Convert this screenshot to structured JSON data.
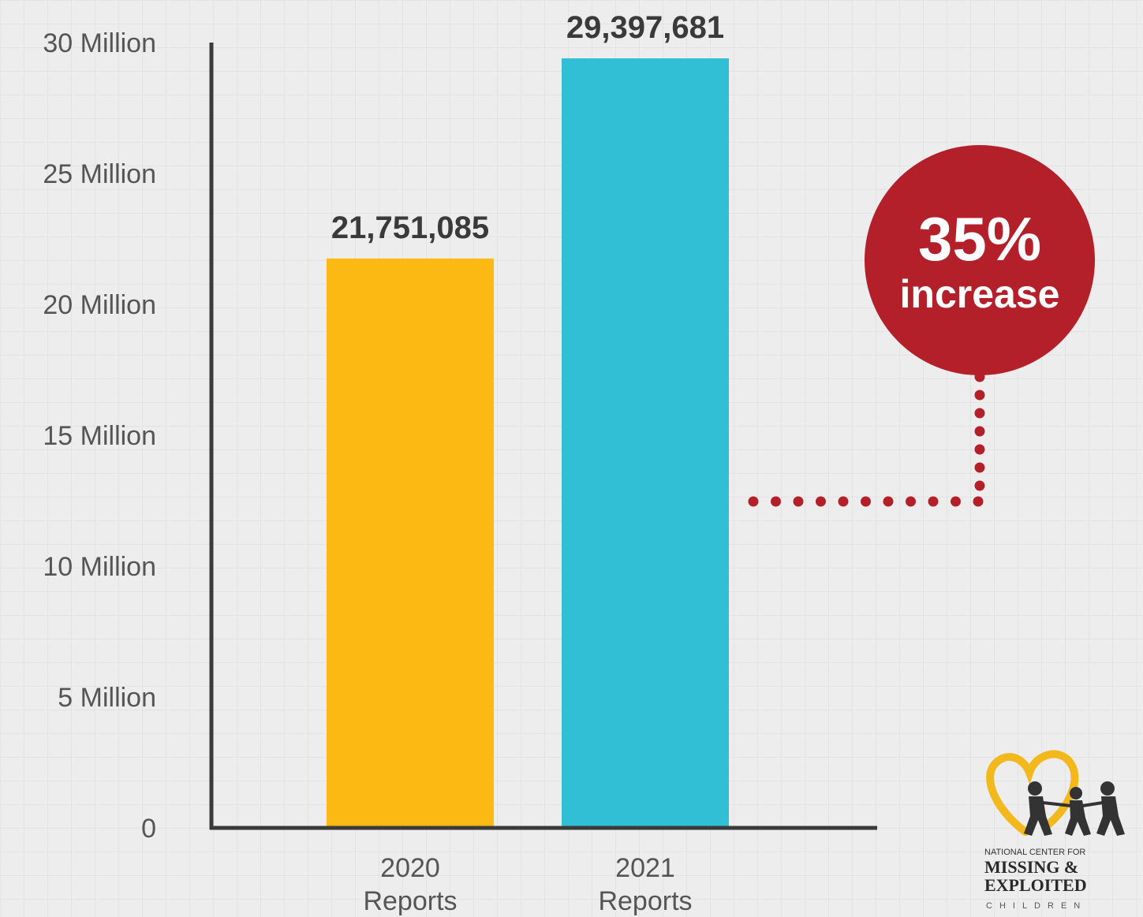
{
  "chart_data": {
    "type": "bar",
    "categories": [
      "2020|Reports",
      "2021|Reports"
    ],
    "values": [
      21751085,
      29397681
    ],
    "value_labels": [
      "21,751,085",
      "29,397,681"
    ],
    "bar_colors": [
      "#fdb913",
      "#31bfd6"
    ],
    "ylim": [
      0,
      30000000
    ],
    "yticks": [
      0,
      5000000,
      10000000,
      15000000,
      20000000,
      25000000,
      30000000
    ],
    "ytick_labels": [
      "0",
      "5 Million",
      "10 Million",
      "15 Million",
      "20 Million",
      "25 Million",
      "30 Million"
    ],
    "grid": true,
    "annotation": {
      "big": "35%",
      "small": "increase",
      "color": "#b3202a"
    }
  },
  "logo": {
    "line1": "NATIONAL CENTER FOR",
    "line2": "MISSING &",
    "line3": "EXPLOITED",
    "line4": "CHILDREN",
    "heart_color": "#f2b81c"
  }
}
